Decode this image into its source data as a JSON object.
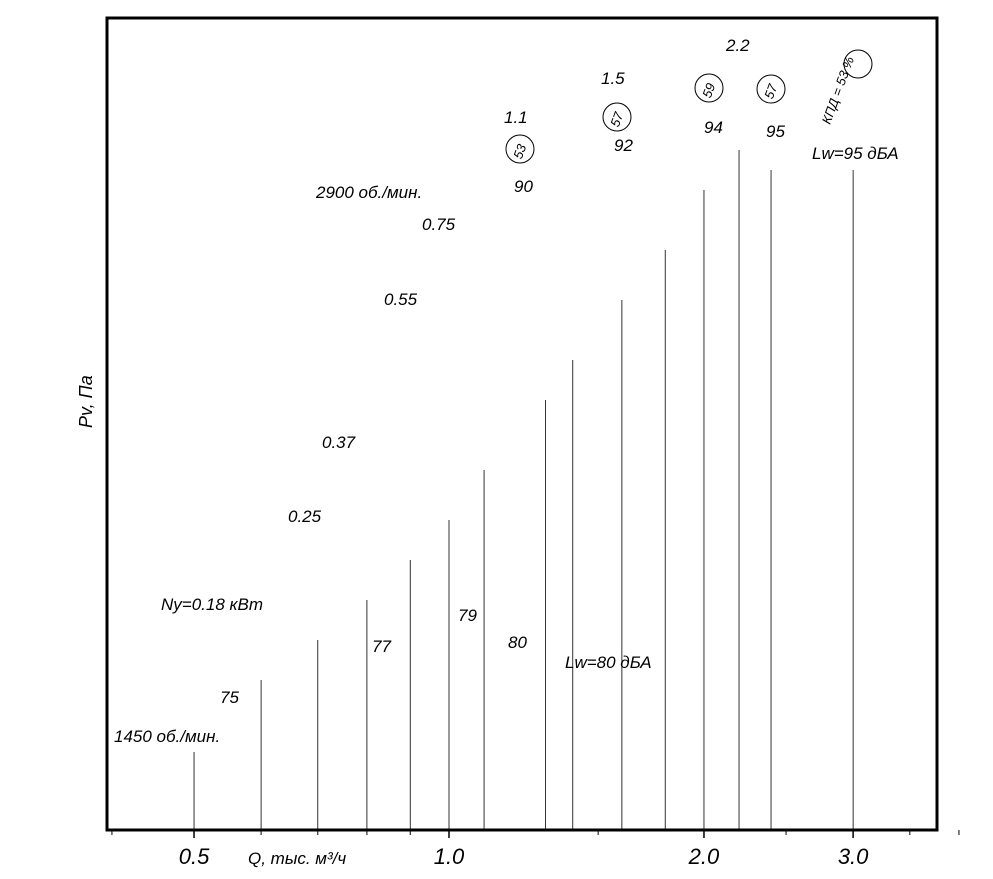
{
  "chart_data": {
    "type": "line",
    "title": "",
    "xlabel": "Q, тыс. м³/ч",
    "ylabel": "Pv, Па",
    "x_scale": "log",
    "y_scale": "log",
    "xlim": [
      0.33,
      4.2
    ],
    "ylim": [
      190,
      1900
    ],
    "x_ticks": [
      "0.5",
      "1.0",
      "2.0",
      "3.0"
    ],
    "y_ticks": [
      "250",
      "300",
      "400",
      "500",
      "800",
      "1000",
      "1200",
      "1600"
    ],
    "speed_curves": [
      {
        "label": "2900 об./мин.",
        "points": [
          [
            1.09,
            1120
          ],
          [
            1.32,
            1185
          ],
          [
            1.6,
            1250
          ],
          [
            1.9,
            1290
          ],
          [
            2.1,
            1300
          ],
          [
            2.32,
            1285
          ],
          [
            2.52,
            1220
          ]
        ]
      },
      {
        "label": "1450 об./мин.",
        "points": [
          [
            0.59,
            272
          ],
          [
            0.72,
            291
          ],
          [
            0.9,
            310
          ],
          [
            1.02,
            321
          ],
          [
            1.12,
            323
          ],
          [
            1.22,
            316
          ],
          [
            1.32,
            301
          ]
        ]
      }
    ],
    "power_curves": [
      {
        "label": "0.18",
        "unit_label": "Ny=0.18 кВт",
        "points": [
          [
            0.66,
            350
          ],
          [
            0.73,
            329
          ],
          [
            0.79,
            306
          ]
        ]
      },
      {
        "label": "0.25",
        "points": [
          [
            0.73,
            443
          ],
          [
            0.9,
            403
          ],
          [
            1.05,
            360
          ],
          [
            1.16,
            327
          ]
        ]
      },
      {
        "label": "0.37",
        "points": [
          [
            0.8,
            580
          ],
          [
            1.0,
            535
          ],
          [
            1.2,
            480
          ],
          [
            1.35,
            410
          ],
          [
            1.45,
            348
          ]
        ]
      },
      {
        "label": "0.55",
        "points": [
          [
            0.9,
            830
          ],
          [
            1.1,
            780
          ],
          [
            1.3,
            700
          ],
          [
            1.48,
            620
          ],
          [
            1.61,
            510
          ]
        ]
      },
      {
        "label": "0.75",
        "points": [
          [
            1.0,
            1000
          ],
          [
            1.2,
            950
          ],
          [
            1.4,
            860
          ],
          [
            1.6,
            760
          ],
          [
            1.76,
            660
          ]
        ]
      },
      {
        "label": "1.1",
        "points": [
          [
            1.2,
            1380
          ],
          [
            1.4,
            1300
          ],
          [
            1.6,
            1200
          ],
          [
            1.8,
            1050
          ],
          [
            1.98,
            830
          ]
        ]
      },
      {
        "label": "1.5",
        "points": [
          [
            1.6,
            1560
          ],
          [
            1.8,
            1460
          ],
          [
            2.0,
            1300
          ],
          [
            2.18,
            1150
          ],
          [
            2.35,
            1010
          ]
        ]
      },
      {
        "label": "2.2",
        "points": [
          [
            2.41,
            1740
          ],
          [
            2.6,
            1380
          ]
        ]
      }
    ],
    "efficiency_labels": [
      "53",
      "57",
      "59",
      "57",
      "КПД = 53 %"
    ],
    "noise_levels": {
      "upper": [
        "90",
        "92",
        "94",
        "95",
        "Lw=95 дБА"
      ],
      "lower": [
        "75",
        "77",
        "79",
        "80",
        "Lw=80 дБА"
      ]
    },
    "legend": "none",
    "grid": true
  }
}
